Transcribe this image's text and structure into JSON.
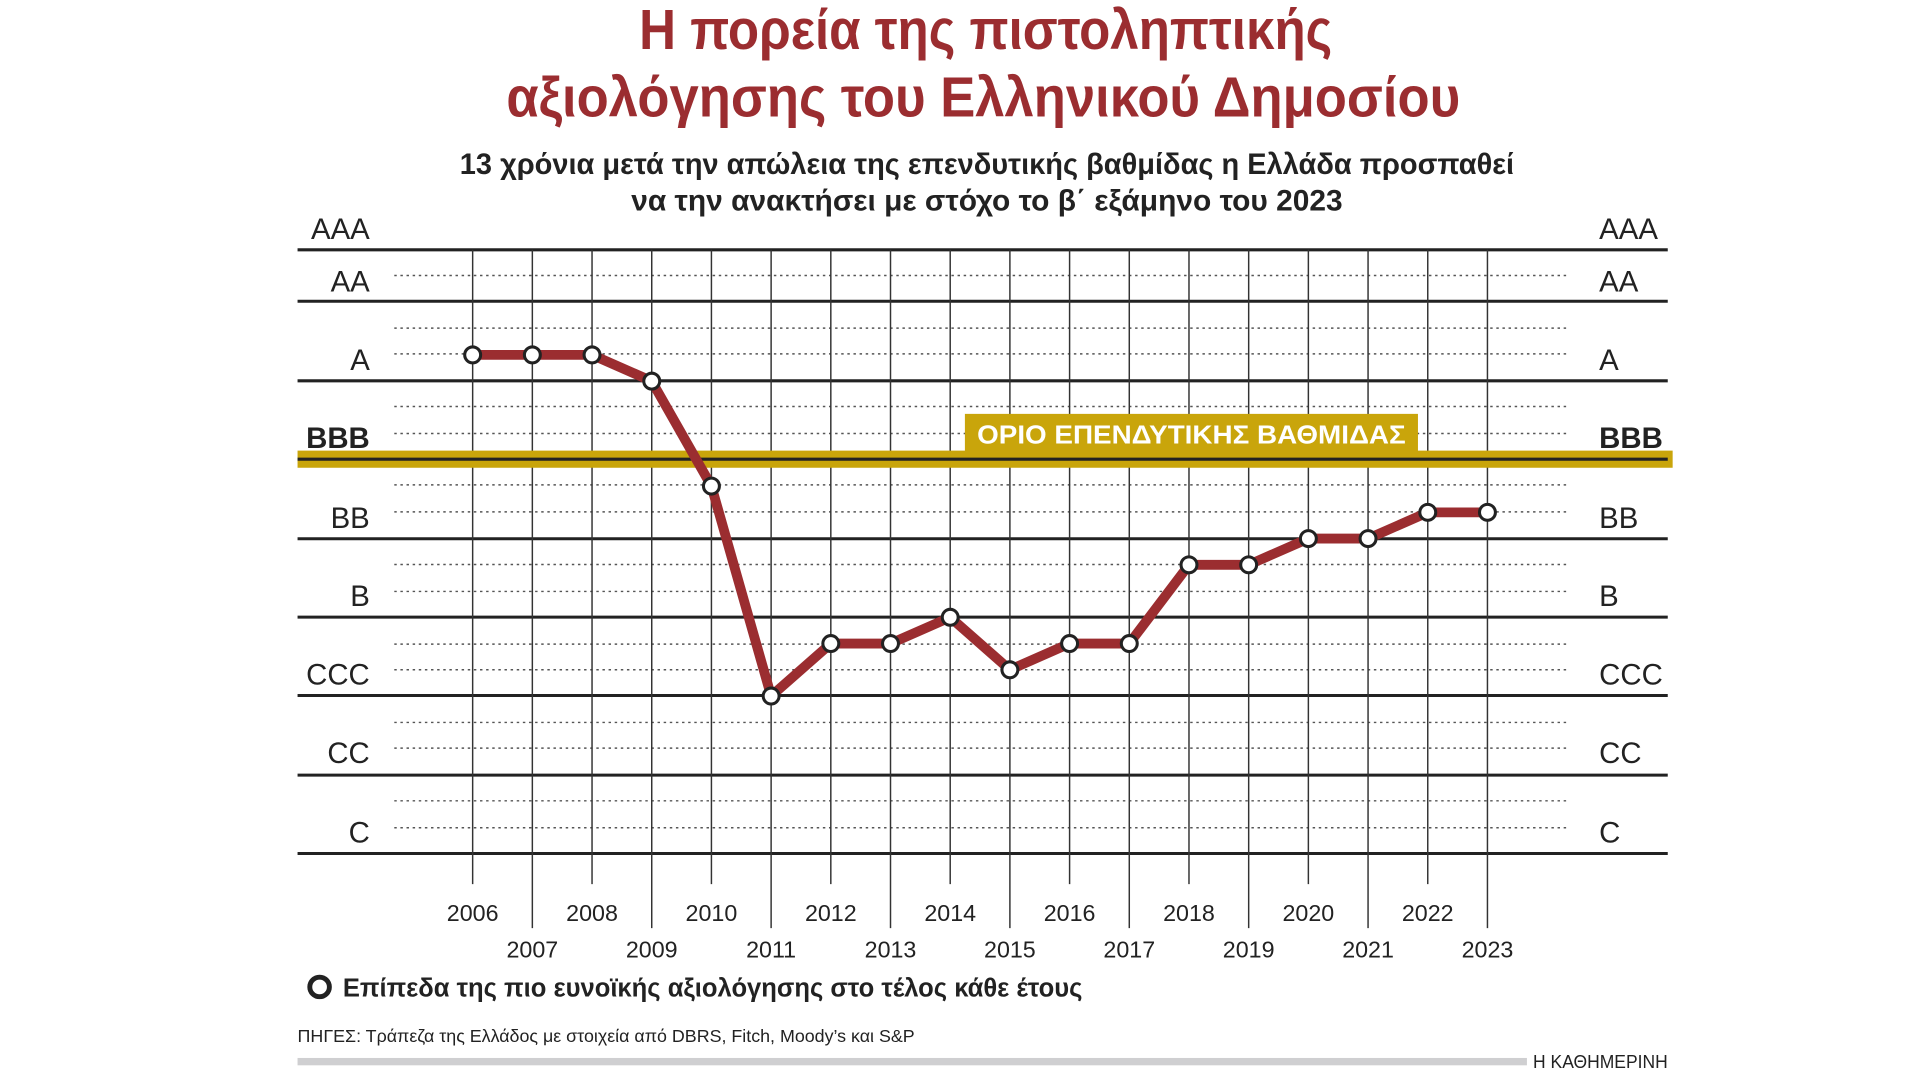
{
  "chart_data": {
    "type": "line",
    "title": [
      "Η πορεία της πιστοληπτικής",
      "αξιολόγησης του Ελληνικού Δημοσίου"
    ],
    "subtitle": [
      "13 χρόνια μετά την απώλεια της επενδυτικής βαθμίδας η Ελλάδα προσπαθεί",
      "να την ανακτήσει με στόχο το β΄ εξάμηνο του 2023"
    ],
    "y_bands": [
      "AAA",
      "AA",
      "A",
      "BBB",
      "BB",
      "B",
      "CCC",
      "CC",
      "C"
    ],
    "y_scale_notches": [
      "C",
      "CC-",
      "CC",
      "CC+",
      "CCC-",
      "CCC",
      "CCC+",
      "B-",
      "B",
      "B+",
      "BB-",
      "BB",
      "BB+",
      "BBB-",
      "BBB",
      "BBB+",
      "A-",
      "A",
      "A+",
      "AA-",
      "AA",
      "AA+",
      "AAA"
    ],
    "x": [
      "2006",
      "2007",
      "2008",
      "2009",
      "2010",
      "2011",
      "2012",
      "2013",
      "2014",
      "2015",
      "2016",
      "2017",
      "2018",
      "2019",
      "2020",
      "2021",
      "2022",
      "2023"
    ],
    "series": [
      {
        "name": "Επίπεδα της πιο ευνοϊκής αξιολόγησης στο τέλος κάθε έτους",
        "notch_index": [
          19,
          19,
          19,
          18,
          14,
          6,
          8,
          8,
          9,
          7,
          8,
          8,
          11,
          11,
          12,
          12,
          13,
          13
        ]
      }
    ],
    "threshold": {
      "label": "ΟΡΙΟ ΕΠΕΝΔΥΤΙΚΗΣ ΒΑΘΜΙΔΑΣ",
      "level": "BBB-"
    },
    "legend": "Επίπεδα της πιο ευνοϊκής αξιολόγησης στο τέλος κάθε έτους",
    "legend_position": "bottom-left",
    "colors": {
      "line": "#9b2d30",
      "threshold": "#c9a50b",
      "title": "#9b2d30"
    }
  },
  "footer": {
    "sources": "ΠΗΓΕΣ: Τράπεζα της Ελλάδος με στοιχεία από DBRS, Fitch, Moody’s και S&P",
    "brand": "Η ΚΑΘΗΜΕΡΙΝΗ"
  }
}
